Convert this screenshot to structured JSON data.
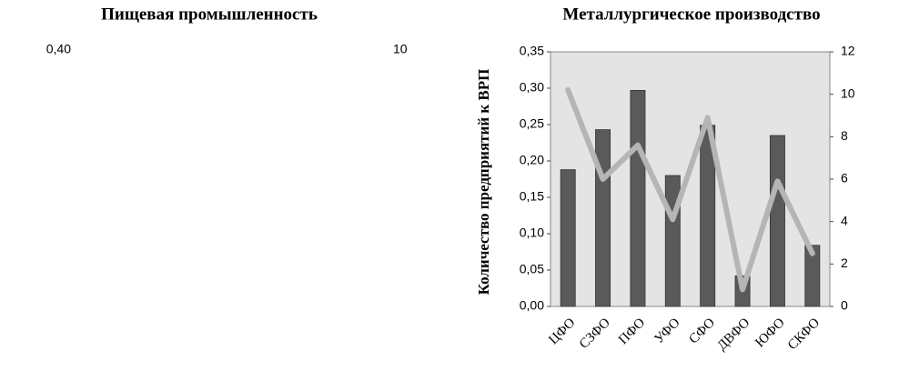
{
  "chart_data": [
    {
      "type": "bar",
      "title": "Пищевая промышленность",
      "ylim": [
        0,
        0.4
      ],
      "yticks": [
        {
          "value": 0.4,
          "label": "0,40"
        }
      ],
      "y2lim": [
        0,
        10
      ],
      "y2ticks": [
        10
      ]
    },
    {
      "type": "combo",
      "title": "Металлургическое производство",
      "ylabel": "Количество предприятий к ВРП",
      "categories": [
        "ЦФО",
        "СЗФО",
        "ПФО",
        "УФО",
        "СФО",
        "ДВФО",
        "ЮФО",
        "СКФО"
      ],
      "series": [
        {
          "type": "bar",
          "color": "#5a5a5a",
          "values": [
            0.188,
            0.243,
            0.297,
            0.18,
            0.249,
            0.042,
            0.235,
            0.084
          ]
        },
        {
          "type": "line",
          "axis": "y2",
          "color": "#b5b5b5",
          "values": [
            10.2,
            6.0,
            7.6,
            4.1,
            8.9,
            0.8,
            5.9,
            2.5
          ]
        }
      ],
      "ylim": [
        0,
        0.35
      ],
      "yticks": [
        {
          "value": 0,
          "label": "0,00"
        },
        {
          "value": 0.05,
          "label": "0,05"
        },
        {
          "value": 0.1,
          "label": "0,10"
        },
        {
          "value": 0.15,
          "label": "0,15"
        },
        {
          "value": 0.2,
          "label": "0,20"
        },
        {
          "value": 0.25,
          "label": "0,25"
        },
        {
          "value": 0.3,
          "label": "0,30"
        },
        {
          "value": 0.35,
          "label": "0,35"
        }
      ],
      "y2lim": [
        0,
        12
      ],
      "y2ticks": [
        0,
        2,
        4,
        6,
        8,
        10,
        12
      ],
      "plot_background": "#e4e4e4"
    }
  ]
}
